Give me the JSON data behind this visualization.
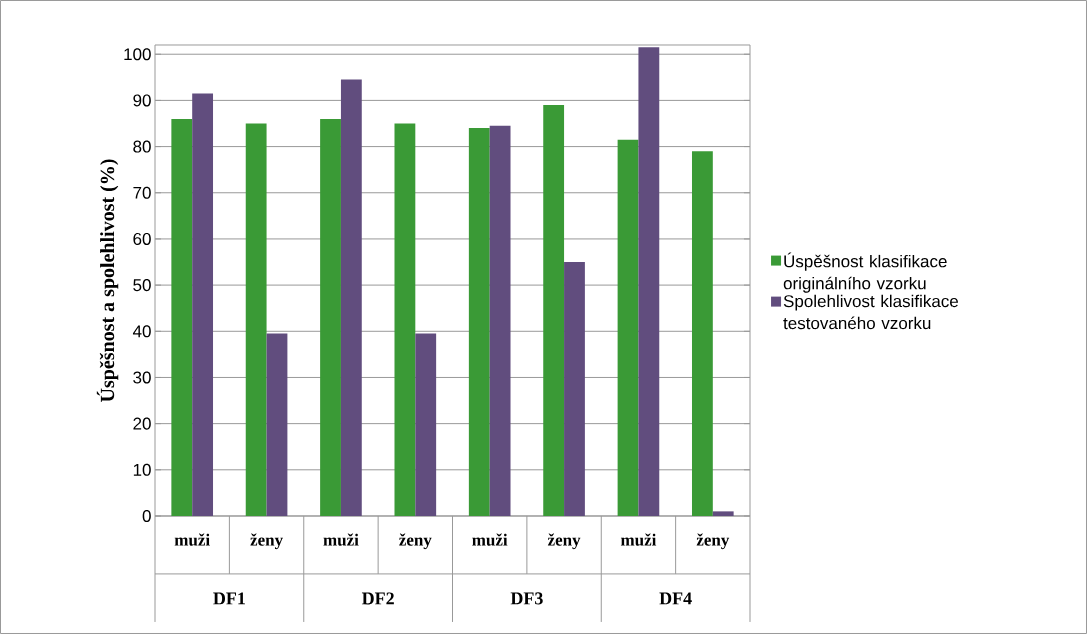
{
  "chart_data": {
    "type": "bar",
    "ylabel": "Úspěšnost a spolehlivost (%)",
    "categories": [
      "muži",
      "ženy",
      "muži",
      "ženy",
      "muži",
      "ženy",
      "muži",
      "ženy"
    ],
    "annotations": [
      "DF1",
      "DF2",
      "DF3",
      "DF4"
    ],
    "series": [
      {
        "name": "Úspěšnost klasifikace originálního vzorku",
        "color": "#3a9a36",
        "values": [
          86,
          85,
          86,
          85,
          84,
          89,
          81.5,
          79
        ]
      },
      {
        "name": "Spolehlivost klasifikace testovaného vzorku",
        "color": "#614d7e",
        "values": [
          91.5,
          39.5,
          94.5,
          39.5,
          84.5,
          55,
          101.5,
          1
        ]
      }
    ],
    "ylim": [
      0,
      102
    ],
    "yticks": [
      0,
      10,
      20,
      30,
      40,
      50,
      60,
      70,
      80,
      90,
      100
    ],
    "grid": "y",
    "legend": "right"
  }
}
